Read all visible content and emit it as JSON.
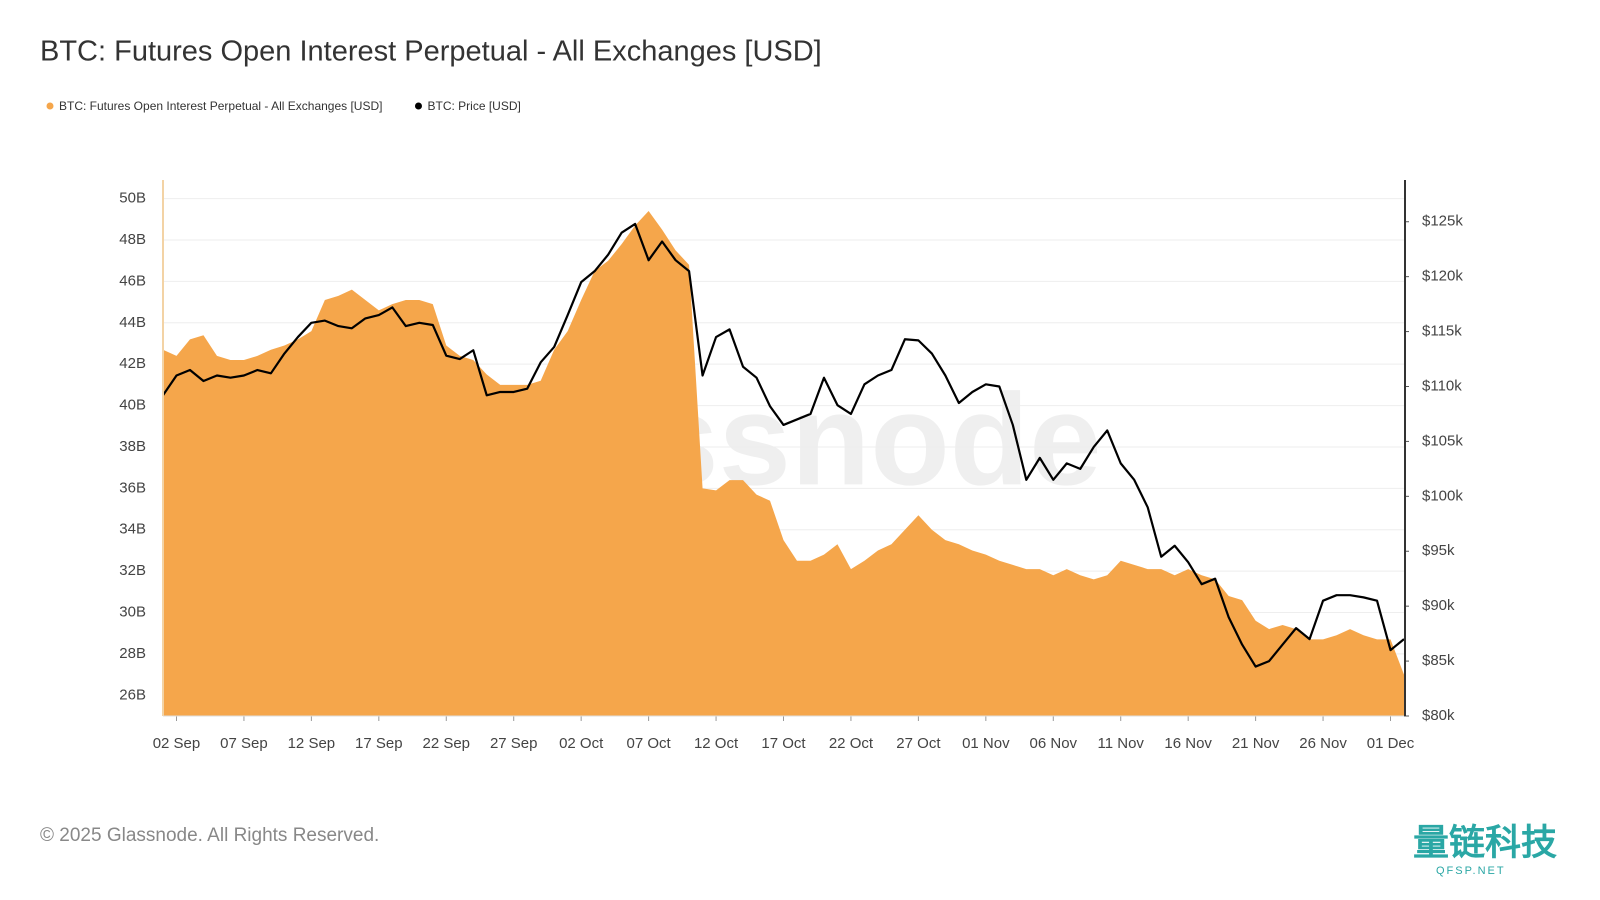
{
  "chart_data": {
    "type": "area",
    "title": "BTC: Futures Open Interest Perpetual - All Exchanges [USD]",
    "watermark": "glassnode",
    "categories": [
      null,
      "02 Sep",
      null,
      null,
      null,
      null,
      "07 Sep",
      null,
      null,
      null,
      null,
      "12 Sep",
      null,
      null,
      null,
      null,
      "17 Sep",
      null,
      null,
      null,
      null,
      "22 Sep",
      null,
      null,
      null,
      null,
      "27 Sep",
      null,
      null,
      null,
      null,
      "02 Oct",
      null,
      null,
      null,
      null,
      "07 Oct",
      null,
      null,
      null,
      null,
      "12 Oct",
      null,
      null,
      null,
      null,
      "17 Oct",
      null,
      null,
      null,
      null,
      "22 Oct",
      null,
      null,
      null,
      null,
      "27 Oct",
      null,
      null,
      null,
      null,
      "01 Nov",
      null,
      null,
      null,
      null,
      "06 Nov",
      null,
      null,
      null,
      null,
      "11 Nov",
      null,
      null,
      null,
      null,
      "16 Nov",
      null,
      null,
      null,
      null,
      "21 Nov",
      null,
      null,
      null,
      null,
      "26 Nov",
      null,
      null,
      null,
      null,
      "01 Dec",
      null
    ],
    "series": [
      {
        "name": "BTC: Futures Open Interest Perpetual - All Exchanges [USD]",
        "type": "area",
        "color": "#f5a64b",
        "values": [
          42.7,
          42.4,
          43.2,
          43.4,
          42.4,
          42.2,
          42.2,
          42.4,
          42.7,
          42.9,
          43.2,
          43.6,
          45.1,
          45.3,
          45.6,
          45.1,
          44.6,
          44.9,
          45.1,
          45.1,
          44.9,
          42.9,
          42.4,
          42.2,
          41.5,
          41.0,
          41.0,
          41.0,
          41.2,
          42.7,
          43.6,
          45.1,
          46.5,
          47.0,
          47.8,
          48.7,
          49.4,
          48.5,
          47.5,
          46.8,
          36.0,
          35.9,
          36.4,
          36.4,
          35.7,
          35.4,
          33.5,
          32.5,
          32.5,
          32.8,
          33.3,
          32.1,
          32.5,
          33.0,
          33.3,
          34.0,
          34.7,
          34.0,
          33.5,
          33.3,
          33.0,
          32.8,
          32.5,
          32.3,
          32.1,
          32.1,
          31.8,
          32.1,
          31.8,
          31.6,
          31.8,
          32.5,
          32.3,
          32.1,
          32.1,
          31.8,
          32.1,
          31.8,
          31.6,
          30.8,
          30.6,
          29.6,
          29.2,
          29.4,
          29.2,
          28.7,
          28.7,
          28.9,
          29.2,
          28.9,
          28.7,
          28.7,
          27.0
        ]
      },
      {
        "name": "BTC: Price [USD]",
        "type": "line",
        "axis": "y2",
        "color": "#000000",
        "values": [
          109.2,
          111.0,
          111.5,
          110.5,
          111.0,
          110.8,
          111.0,
          111.5,
          111.2,
          113.0,
          114.5,
          115.8,
          116.0,
          115.5,
          115.3,
          116.2,
          116.5,
          117.2,
          115.5,
          115.8,
          115.6,
          112.8,
          112.5,
          113.3,
          109.2,
          109.5,
          109.5,
          109.8,
          112.2,
          113.6,
          116.5,
          119.5,
          120.5,
          122.0,
          124.0,
          124.8,
          121.5,
          123.2,
          121.5,
          120.5,
          111.0,
          114.5,
          115.2,
          111.8,
          110.8,
          108.2,
          106.5,
          107.0,
          107.5,
          110.8,
          108.3,
          107.5,
          110.2,
          111.0,
          111.5,
          114.3,
          114.2,
          113.0,
          111.0,
          108.5,
          109.5,
          110.2,
          110.0,
          106.5,
          101.5,
          103.5,
          101.5,
          103.0,
          102.5,
          104.5,
          106.0,
          103.0,
          101.5,
          99.0,
          94.5,
          95.5,
          94.0,
          92.0,
          92.5,
          89.0,
          86.5,
          84.5,
          85.0,
          86.5,
          88.0,
          87.0,
          90.5,
          91.0,
          91.0,
          90.8,
          90.5,
          86.0,
          87.0
        ]
      }
    ],
    "ylim": [
      25,
      50.9
    ],
    "yticks": [
      {
        "value": 26,
        "label": "26B"
      },
      {
        "value": 28,
        "label": "28B"
      },
      {
        "value": 30,
        "label": "30B"
      },
      {
        "value": 32,
        "label": "32B"
      },
      {
        "value": 34,
        "label": "34B"
      },
      {
        "value": 36,
        "label": "36B"
      },
      {
        "value": 38,
        "label": "38B"
      },
      {
        "value": 40,
        "label": "40B"
      },
      {
        "value": 42,
        "label": "42B"
      },
      {
        "value": 44,
        "label": "44B"
      },
      {
        "value": 46,
        "label": "46B"
      },
      {
        "value": 48,
        "label": "48B"
      },
      {
        "value": 50,
        "label": "50B"
      }
    ],
    "y2lim": [
      80,
      128.8
    ],
    "y2ticks": [
      {
        "value": 80,
        "label": "$80k"
      },
      {
        "value": 85,
        "label": "$85k"
      },
      {
        "value": 90,
        "label": "$90k"
      },
      {
        "value": 95,
        "label": "$95k"
      },
      {
        "value": 100,
        "label": "$100k"
      },
      {
        "value": 105,
        "label": "$105k"
      },
      {
        "value": 110,
        "label": "$110k"
      },
      {
        "value": 115,
        "label": "$115k"
      },
      {
        "value": 120,
        "label": "$120k"
      },
      {
        "value": 125,
        "label": "$125k"
      }
    ],
    "grid": true,
    "legend": "top-left"
  },
  "footer": {
    "copyright": "© 2025 Glassnode. All Rights Reserved.",
    "badge": "量链科技",
    "badge_sub": "QFSP.NET"
  }
}
